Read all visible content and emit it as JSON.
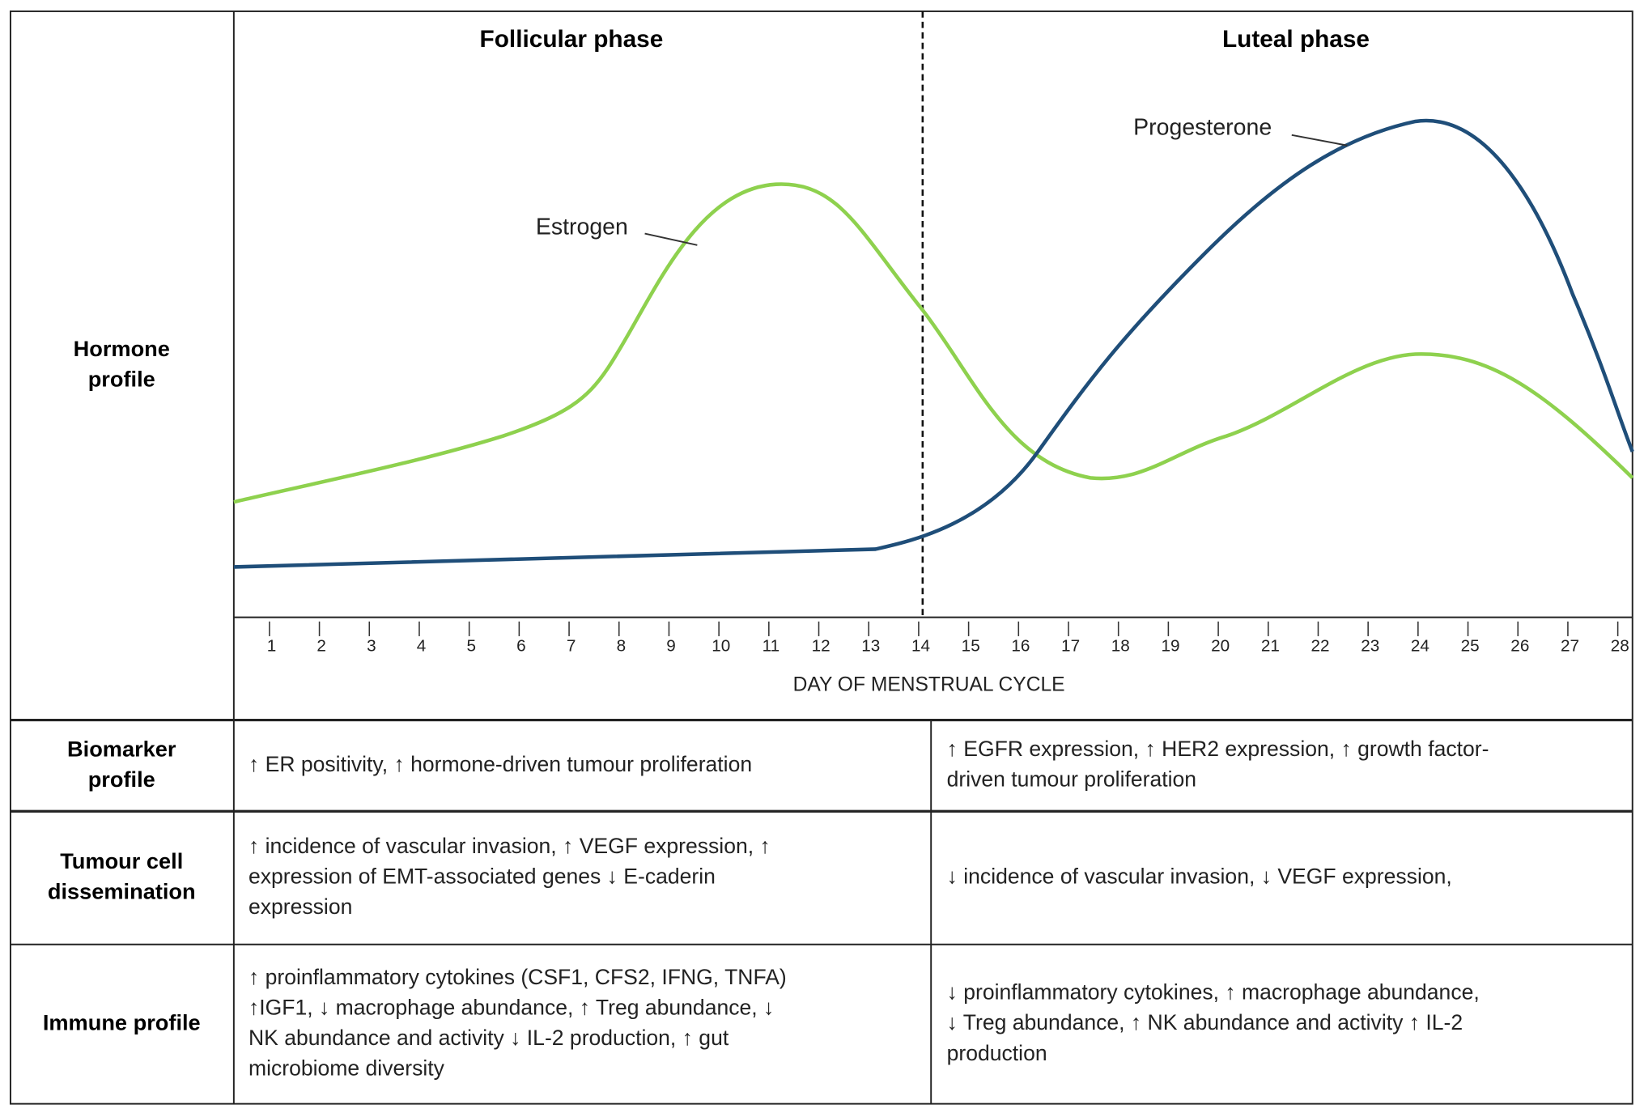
{
  "header": {
    "phases": [
      "Follicular phase",
      "Luteal phase"
    ]
  },
  "chart": {
    "curve_labels": [
      "Estrogen",
      "Progesterone"
    ],
    "x_axis_title": "DAY OF MENSTRUAL  CYCLE",
    "days": [
      1,
      2,
      3,
      4,
      5,
      6,
      7,
      8,
      9,
      10,
      11,
      12,
      13,
      14,
      15,
      16,
      17,
      18,
      19,
      20,
      21,
      22,
      23,
      24,
      25,
      26,
      27,
      28
    ]
  },
  "rows": [
    {
      "label": [
        "Hormone",
        "profile"
      ]
    },
    {
      "label": [
        "Biomarker",
        "profile"
      ],
      "cells": [
        [
          "↑ ER positivity, ↑ hormone-driven tumour proliferation"
        ],
        [
          "↑ EGFR expression, ↑ HER2 expression, ↑ growth factor-",
          "driven tumour proliferation"
        ]
      ]
    },
    {
      "label": [
        "Tumour cell",
        "dissemination"
      ],
      "cells": [
        [
          "↑ incidence of vascular invasion, ↑ VEGF expression, ↑",
          "expression of EMT-associated genes ↓ E-caderin",
          "expression"
        ],
        [
          "↓ incidence of vascular invasion, ↓ VEGF expression,"
        ]
      ]
    },
    {
      "label": [
        "Immune profile"
      ],
      "cells": [
        [
          "↑ proinflammatory cytokines (CSF1, CFS2, IFNG,  TNFA)",
          "↑IGF1, ↓ macrophage abundance, ↑ Treg abundance, ↓",
          "NK abundance and activity ↓ IL-2 production, ↑ gut",
          "microbiome diversity"
        ],
        [
          "↓ proinflammatory cytokines, ↑ macrophage abundance,",
          "↓ Treg abundance,  ↑ NK abundance and activity ↑ IL-2",
          "production"
        ]
      ]
    }
  ]
}
